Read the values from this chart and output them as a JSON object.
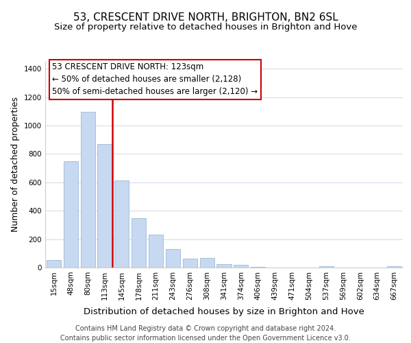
{
  "title": "53, CRESCENT DRIVE NORTH, BRIGHTON, BN2 6SL",
  "subtitle": "Size of property relative to detached houses in Brighton and Hove",
  "xlabel": "Distribution of detached houses by size in Brighton and Hove",
  "ylabel": "Number of detached properties",
  "bar_labels": [
    "15sqm",
    "48sqm",
    "80sqm",
    "113sqm",
    "145sqm",
    "178sqm",
    "211sqm",
    "243sqm",
    "276sqm",
    "308sqm",
    "341sqm",
    "374sqm",
    "406sqm",
    "439sqm",
    "471sqm",
    "504sqm",
    "537sqm",
    "569sqm",
    "602sqm",
    "634sqm",
    "667sqm"
  ],
  "bar_values": [
    55,
    750,
    1095,
    870,
    615,
    350,
    230,
    130,
    65,
    70,
    25,
    18,
    5,
    2,
    0,
    0,
    10,
    0,
    0,
    0,
    10
  ],
  "bar_color": "#c6d9f0",
  "bar_edge_color": "#a0b8d8",
  "vline_color": "#cc0000",
  "annotation_line1": "53 CRESCENT DRIVE NORTH: 123sqm",
  "annotation_line2": "← 50% of detached houses are smaller (2,128)",
  "annotation_line3": "50% of semi-detached houses are larger (2,120) →",
  "annotation_box_color": "#ffffff",
  "annotation_box_edge": "#cc0000",
  "ylim": [
    0,
    1450
  ],
  "yticks": [
    0,
    200,
    400,
    600,
    800,
    1000,
    1200,
    1400
  ],
  "footer": "Contains HM Land Registry data © Crown copyright and database right 2024.\nContains public sector information licensed under the Open Government Licence v3.0.",
  "title_fontsize": 11,
  "subtitle_fontsize": 9.5,
  "xlabel_fontsize": 9.5,
  "ylabel_fontsize": 9,
  "tick_fontsize": 7.5,
  "annotation_fontsize": 8.5,
  "footer_fontsize": 7
}
